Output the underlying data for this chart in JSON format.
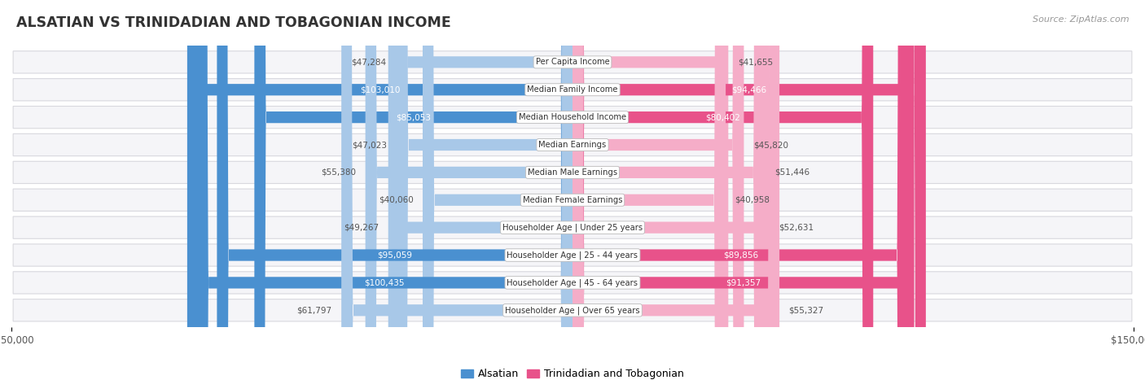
{
  "title": "ALSATIAN VS TRINIDADIAN AND TOBAGONIAN INCOME",
  "source": "Source: ZipAtlas.com",
  "categories": [
    "Per Capita Income",
    "Median Family Income",
    "Median Household Income",
    "Median Earnings",
    "Median Male Earnings",
    "Median Female Earnings",
    "Householder Age | Under 25 years",
    "Householder Age | 25 - 44 years",
    "Householder Age | 45 - 64 years",
    "Householder Age | Over 65 years"
  ],
  "alsatian_values": [
    47284,
    103010,
    85053,
    47023,
    55380,
    40060,
    49267,
    95059,
    100435,
    61797
  ],
  "trinidadian_values": [
    41655,
    94466,
    80402,
    45820,
    51446,
    40958,
    52631,
    89856,
    91357,
    55327
  ],
  "alsatian_labels": [
    "$47,284",
    "$103,010",
    "$85,053",
    "$47,023",
    "$55,380",
    "$40,060",
    "$49,267",
    "$95,059",
    "$100,435",
    "$61,797"
  ],
  "trinidadian_labels": [
    "$41,655",
    "$94,466",
    "$80,402",
    "$45,820",
    "$51,446",
    "$40,958",
    "$52,631",
    "$89,856",
    "$91,357",
    "$55,327"
  ],
  "alsatian_color_light": "#a8c8e8",
  "alsatian_color_dark": "#4a90d0",
  "trinidadian_color_light": "#f5adc8",
  "trinidadian_color_dark": "#e8528a",
  "max_value": 150000,
  "background_color": "#ffffff",
  "row_bg_light": "#f5f5f8",
  "row_border_color": "#d8d8de",
  "label_bg": "#ffffff",
  "label_border": "#cccccc",
  "title_color": "#333333",
  "source_color": "#999999",
  "outside_text_color": "#555555",
  "legend_alsatian": "Alsatian",
  "legend_trinidadian": "Trinidadian and Tobagonian",
  "threshold_dark_label": 70000
}
